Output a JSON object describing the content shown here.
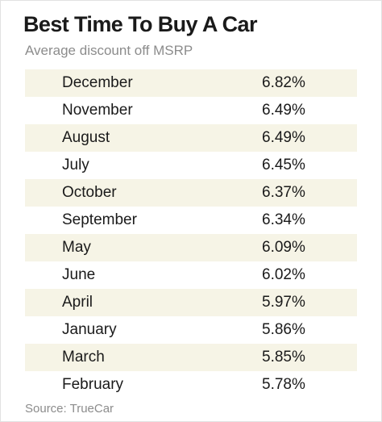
{
  "title": "Best Time To Buy A Car",
  "subtitle": "Average discount off MSRP",
  "source": "Source: TrueCar",
  "chart_data": {
    "type": "table",
    "title": "Best Time To Buy A Car",
    "subtitle": "Average discount off MSRP",
    "rows": [
      {
        "month": "December",
        "value": "6.82%"
      },
      {
        "month": "November",
        "value": "6.49%"
      },
      {
        "month": "August",
        "value": "6.49%"
      },
      {
        "month": "July",
        "value": "6.45%"
      },
      {
        "month": "October",
        "value": "6.37%"
      },
      {
        "month": "September",
        "value": "6.34%"
      },
      {
        "month": "May",
        "value": "6.09%"
      },
      {
        "month": "June",
        "value": "6.02%"
      },
      {
        "month": "April",
        "value": "5.97%"
      },
      {
        "month": "January",
        "value": "5.86%"
      },
      {
        "month": "March",
        "value": "5.85%"
      },
      {
        "month": "February",
        "value": "5.78%"
      }
    ],
    "shaded_row_color": "#f6f4e6"
  }
}
